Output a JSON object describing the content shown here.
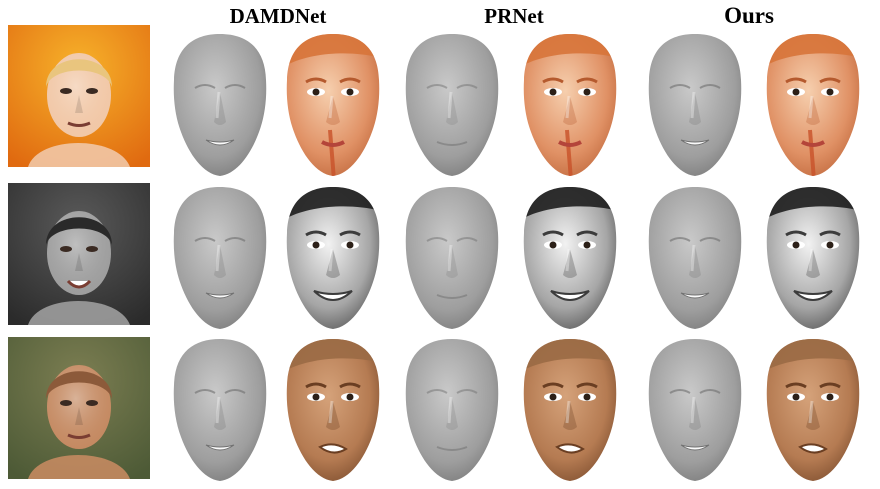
{
  "columns": [
    "DAMDNet",
    "PRNet",
    "Ours"
  ],
  "rows": [
    {
      "photo": {
        "bg": "#e06a10",
        "bg2": "#f7b22a",
        "skin": "#f1c7a6",
        "hair": "#e9c57e"
      },
      "tex": {
        "light": "#f6cfae",
        "mid": "#e09165",
        "dark": "#b55a2e",
        "hair": "#d7743a"
      }
    },
    {
      "photo": {
        "bg": "#2b2b2b",
        "bg2": "#5a5a5a",
        "skin": "#9d9d9d",
        "hair": "#2a2a2a"
      },
      "tex": {
        "light": "#f2f2f2",
        "mid": "#a6a6a6",
        "dark": "#3c3c3c",
        "hair": "#1e1e1e"
      }
    },
    {
      "photo": {
        "bg": "#4d5a36",
        "bg2": "#7c7e52",
        "skin": "#c48961",
        "hair": "#8c5a3a"
      },
      "tex": {
        "light": "#d5a27a",
        "mid": "#b57b52",
        "dark": "#6a3e22",
        "hair": "#9a6a45"
      }
    }
  ],
  "gray_face": {
    "light": "#c9c9c9",
    "mid": "#9e9e9e",
    "dark": "#6e6e6e"
  }
}
